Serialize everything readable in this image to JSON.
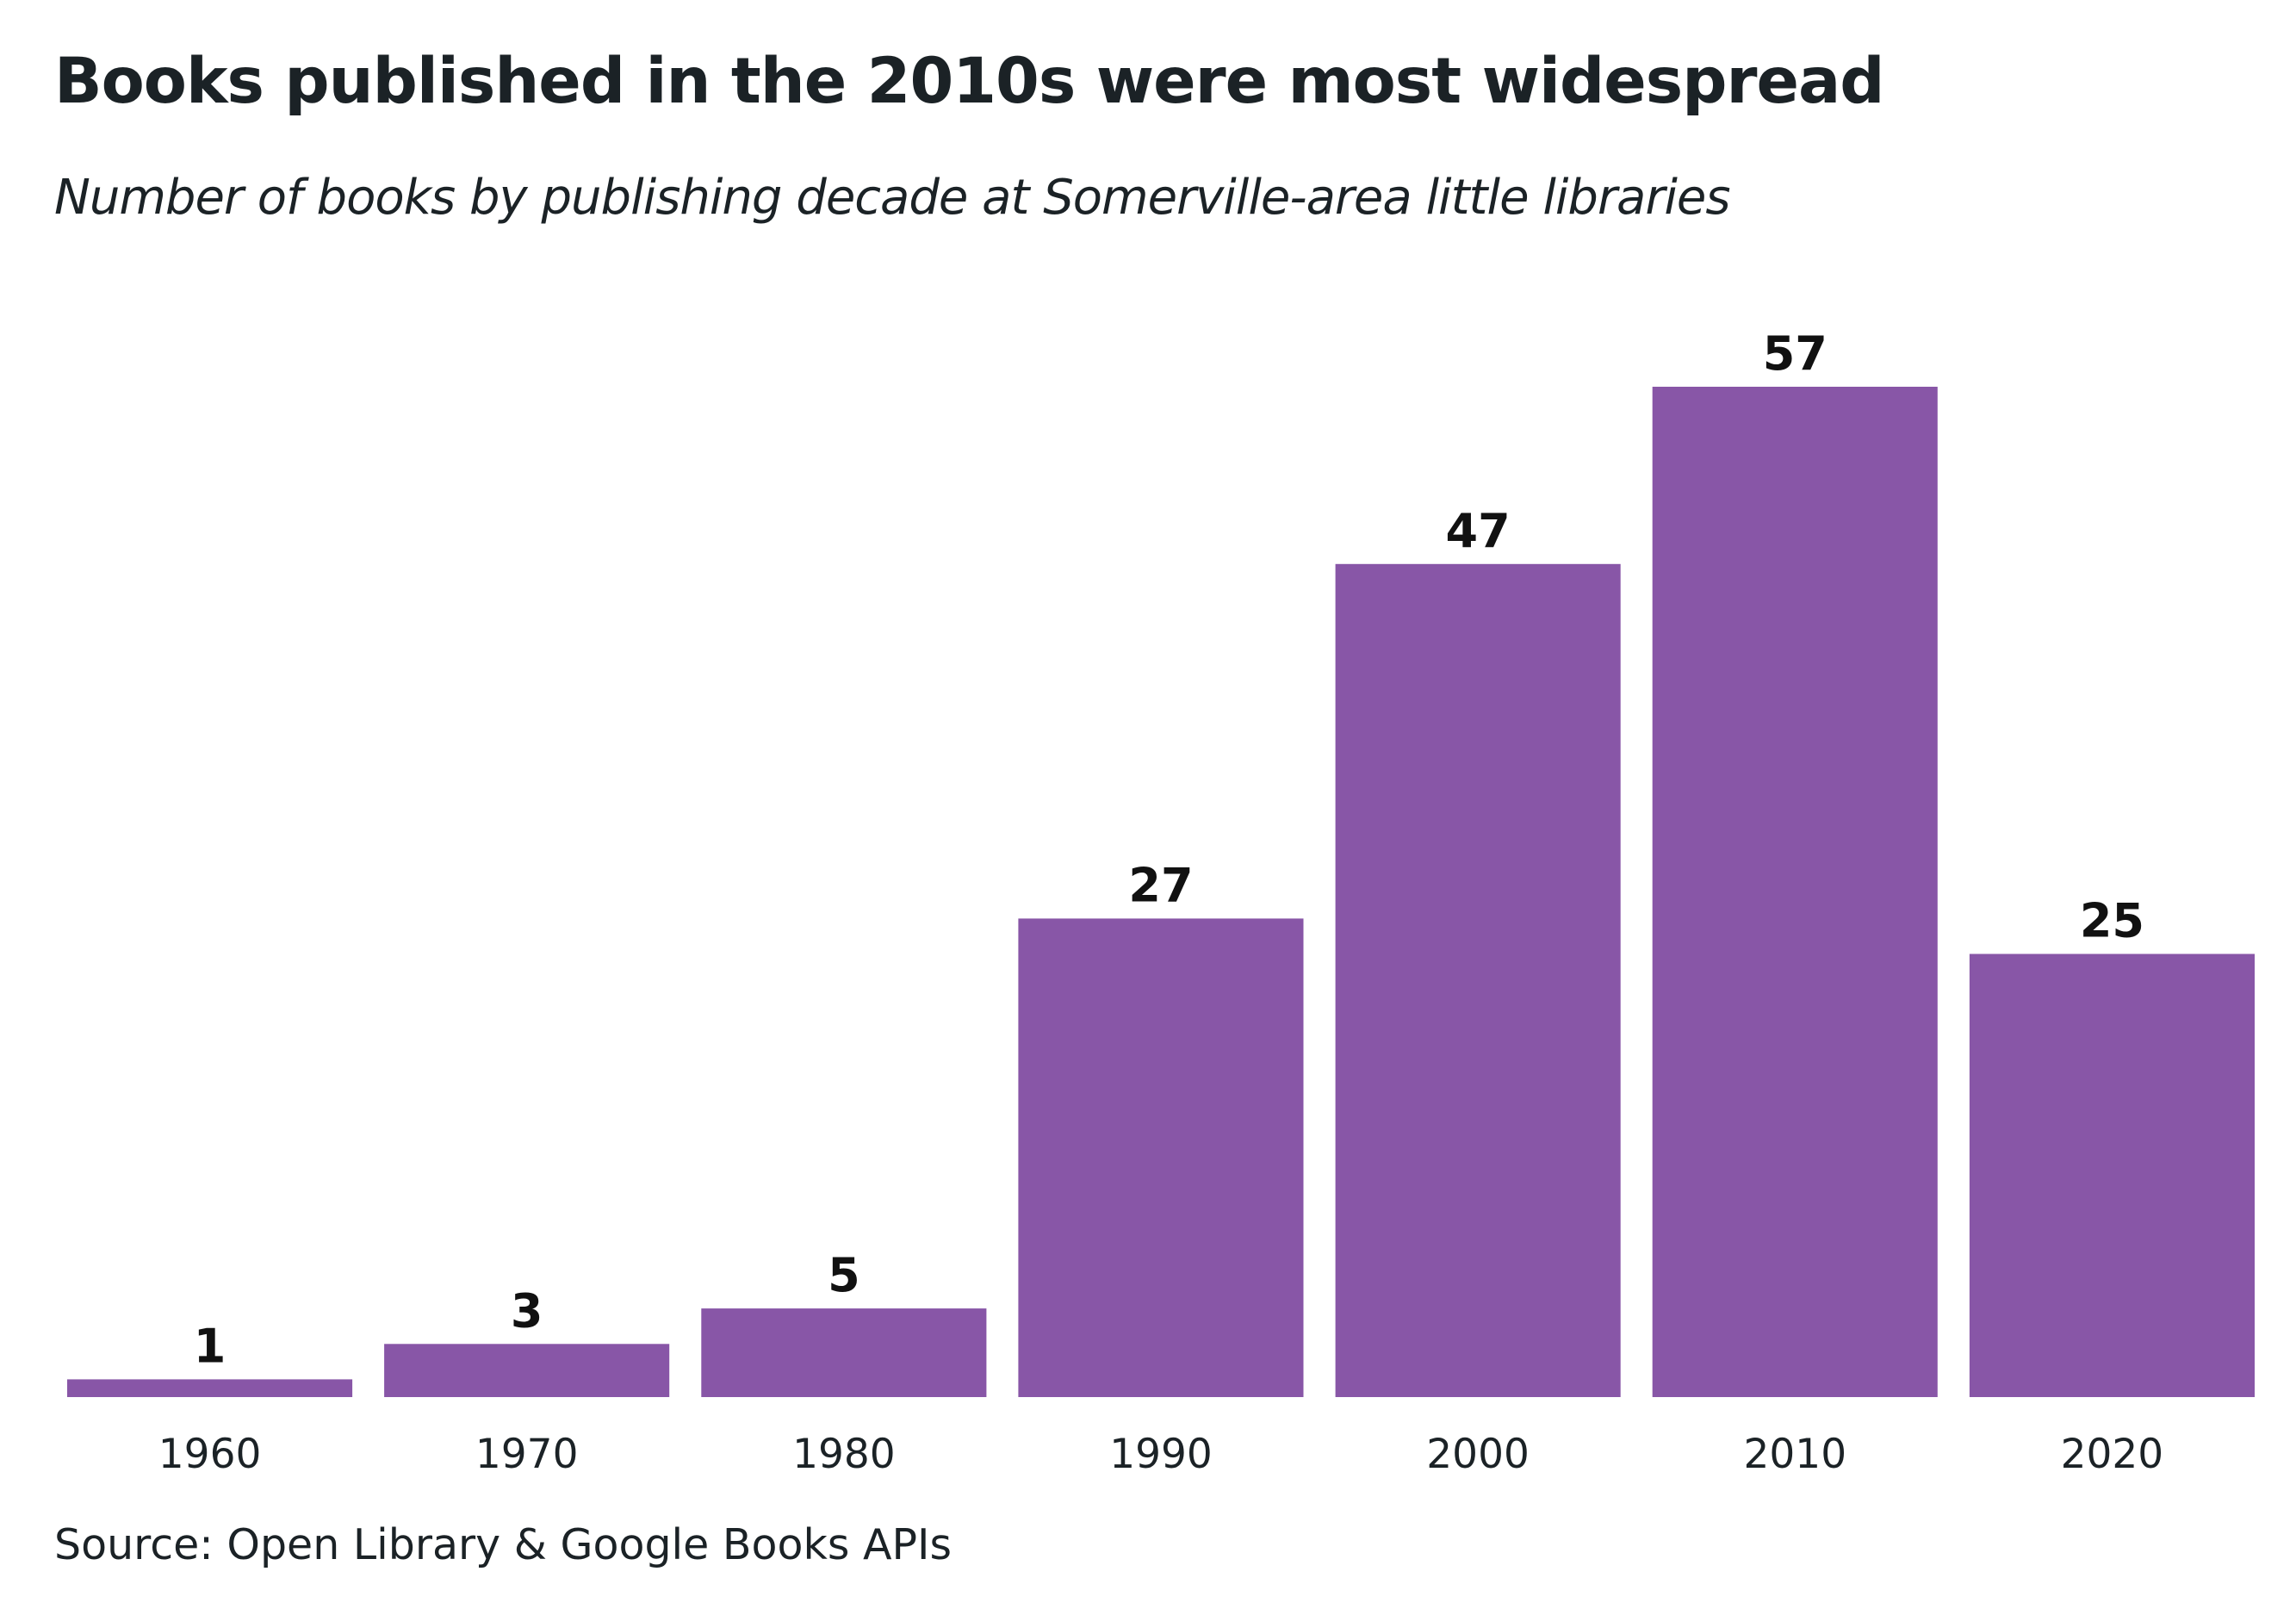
{
  "title": "Books published in the 2010s were most widespread",
  "subtitle": "Number of books by publishing decade at Somerville-area little libraries",
  "caption": "Source: Open Library & Google Books APIs",
  "colors": {
    "bar": "#8856a7",
    "text": "#1b2226",
    "background": "#ffffff"
  },
  "chart_data": {
    "type": "bar",
    "title": "Books published in the 2010s were most widespread",
    "subtitle": "Number of books by publishing decade at Somerville-area little libraries",
    "categories": [
      "1960",
      "1970",
      "1980",
      "1990",
      "2000",
      "2010",
      "2020"
    ],
    "values": [
      1,
      3,
      5,
      27,
      47,
      57,
      25
    ],
    "xlabel": "",
    "ylabel": "",
    "ylim": [
      0,
      57
    ],
    "grid": false,
    "legend": "none",
    "data_labels": true
  }
}
